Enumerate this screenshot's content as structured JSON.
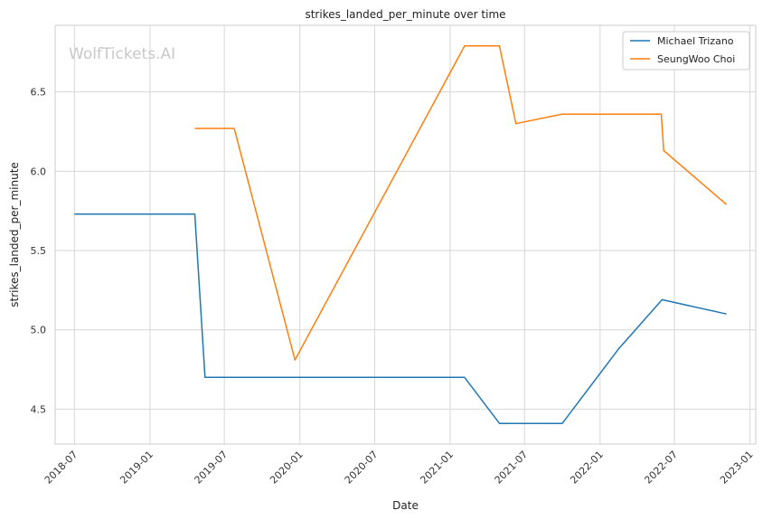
{
  "chart_data": {
    "type": "line",
    "title": "strikes_landed_per_minute over time",
    "xlabel": "Date",
    "ylabel": "strikes_landed_per_minute",
    "watermark": "WolfTickets.AI",
    "x_range": [
      "2018-05-15",
      "2023-01-15"
    ],
    "ylim": [
      4.28,
      6.92
    ],
    "x_ticks": [
      "2018-07",
      "2019-01",
      "2019-07",
      "2020-01",
      "2020-07",
      "2021-01",
      "2021-07",
      "2022-01",
      "2022-07",
      "2023-01"
    ],
    "y_ticks": [
      "4.5",
      "5.0",
      "5.5",
      "6.0",
      "6.5"
    ],
    "grid": true,
    "legend_position": "top-right",
    "series": [
      {
        "name": "Michael Trizano",
        "color": "#1f77b4",
        "points": [
          {
            "x": "2018-07-01",
            "y": 5.73
          },
          {
            "x": "2019-04-20",
            "y": 5.73
          },
          {
            "x": "2019-05-15",
            "y": 4.7
          },
          {
            "x": "2021-02-05",
            "y": 4.7
          },
          {
            "x": "2021-05-01",
            "y": 4.41
          },
          {
            "x": "2021-10-01",
            "y": 4.41
          },
          {
            "x": "2022-02-15",
            "y": 4.88
          },
          {
            "x": "2022-06-01",
            "y": 5.19
          },
          {
            "x": "2022-11-05",
            "y": 5.1
          }
        ]
      },
      {
        "name": "SeungWoo Choi",
        "color": "#ff7f0e",
        "points": [
          {
            "x": "2019-04-20",
            "y": 6.27
          },
          {
            "x": "2019-07-25",
            "y": 6.27
          },
          {
            "x": "2019-12-20",
            "y": 4.81
          },
          {
            "x": "2021-02-05",
            "y": 6.79
          },
          {
            "x": "2021-05-01",
            "y": 6.79
          },
          {
            "x": "2021-06-10",
            "y": 6.3
          },
          {
            "x": "2021-10-01",
            "y": 6.36
          },
          {
            "x": "2022-05-30",
            "y": 6.36
          },
          {
            "x": "2022-06-05",
            "y": 6.13
          },
          {
            "x": "2022-11-05",
            "y": 5.79
          }
        ]
      }
    ]
  }
}
